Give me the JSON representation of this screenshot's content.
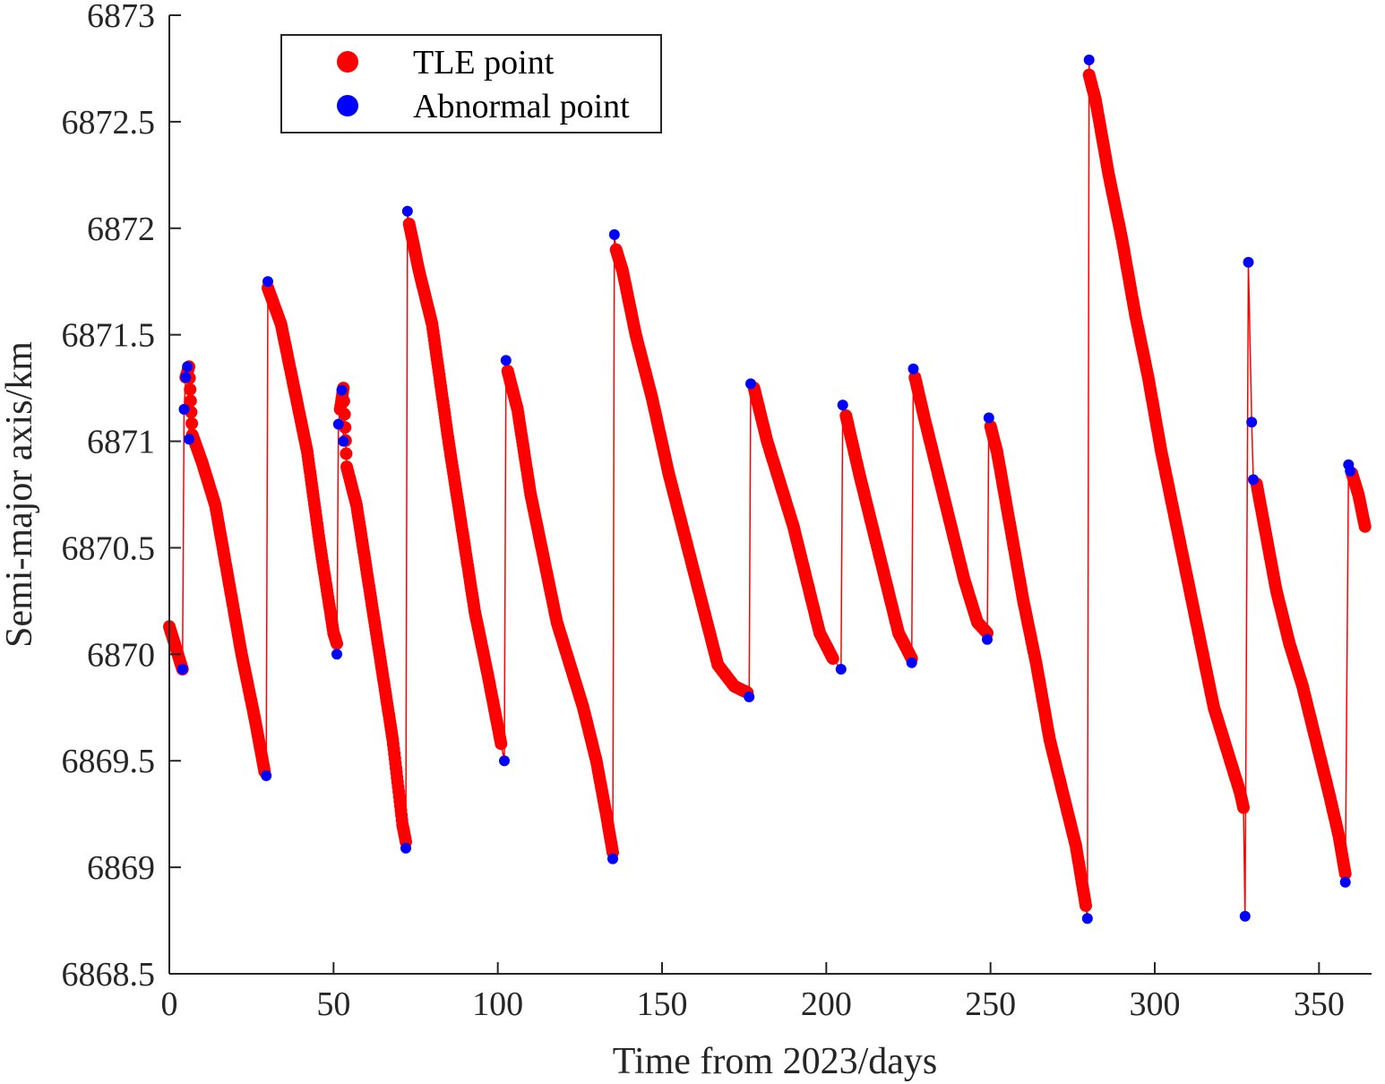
{
  "chart_data": {
    "type": "scatter",
    "title": "",
    "xlabel": "Time from 2023/days",
    "ylabel": "Semi-major axis/km",
    "xlim": [
      0,
      366
    ],
    "ylim": [
      6868.5,
      6873
    ],
    "xticks": [
      0,
      50,
      100,
      150,
      200,
      250,
      300,
      350
    ],
    "yticks": [
      6868.5,
      6869,
      6869.5,
      6870,
      6870.5,
      6871,
      6871.5,
      6872,
      6872.5,
      6873
    ],
    "xtick_labels": [
      "0",
      "50",
      "100",
      "150",
      "200",
      "250",
      "300",
      "350"
    ],
    "ytick_labels": [
      "6868.5",
      "6869",
      "6869.5",
      "6870",
      "6870.5",
      "6871",
      "6871.5",
      "6872",
      "6872.5",
      "6873"
    ],
    "grid": false,
    "legend_position": "top-left",
    "colors": {
      "tle": "#ff0000",
      "abnormal": "#0000ff",
      "line": "#ff0000",
      "axis": "#262626"
    },
    "series": [
      {
        "name": "TLE point",
        "color": "#ff0000",
        "segments": [
          [
            [
              0,
              6870.13
            ],
            [
              4,
              6869.93
            ]
          ],
          [
            [
              5,
              6871.3
            ],
            [
              6,
              6871.35
            ],
            [
              7,
              6871.03
            ],
            [
              10,
              6870.9
            ],
            [
              14,
              6870.7
            ],
            [
              18,
              6870.35
            ],
            [
              22,
              6870.0
            ],
            [
              26,
              6869.7
            ],
            [
              29,
              6869.45
            ]
          ],
          [
            [
              30,
              6871.72
            ],
            [
              34,
              6871.55
            ],
            [
              38,
              6871.25
            ],
            [
              42,
              6870.95
            ],
            [
              46,
              6870.5
            ],
            [
              50,
              6870.1
            ],
            [
              51,
              6870.05
            ]
          ],
          [
            [
              52,
              6871.15
            ],
            [
              53,
              6871.25
            ],
            [
              54,
              6870.88
            ],
            [
              57,
              6870.7
            ],
            [
              60,
              6870.4
            ],
            [
              64,
              6870.0
            ],
            [
              68,
              6869.6
            ],
            [
              71,
              6869.2
            ],
            [
              72,
              6869.12
            ]
          ],
          [
            [
              73,
              6872.02
            ],
            [
              74,
              6871.95
            ],
            [
              76,
              6871.8
            ],
            [
              80,
              6871.55
            ],
            [
              85,
              6871.0
            ],
            [
              89,
              6870.6
            ],
            [
              93,
              6870.2
            ],
            [
              97,
              6869.9
            ],
            [
              101,
              6869.58
            ]
          ],
          [
            [
              103,
              6871.33
            ],
            [
              106,
              6871.15
            ],
            [
              110,
              6870.75
            ],
            [
              114,
              6870.45
            ],
            [
              118,
              6870.15
            ],
            [
              122,
              6869.95
            ],
            [
              126,
              6869.75
            ],
            [
              130,
              6869.5
            ],
            [
              133,
              6869.25
            ],
            [
              135,
              6869.07
            ]
          ],
          [
            [
              136,
              6871.9
            ],
            [
              138,
              6871.8
            ],
            [
              142,
              6871.5
            ],
            [
              147,
              6871.2
            ],
            [
              152,
              6870.85
            ],
            [
              157,
              6870.55
            ],
            [
              162,
              6870.25
            ],
            [
              167,
              6869.95
            ],
            [
              172,
              6869.85
            ],
            [
              176,
              6869.82
            ]
          ],
          [
            [
              178,
              6871.25
            ],
            [
              182,
              6871.0
            ],
            [
              186,
              6870.8
            ],
            [
              190,
              6870.6
            ],
            [
              194,
              6870.35
            ],
            [
              198,
              6870.1
            ],
            [
              202,
              6869.98
            ]
          ],
          [
            [
              206,
              6871.12
            ],
            [
              210,
              6870.85
            ],
            [
              214,
              6870.6
            ],
            [
              218,
              6870.35
            ],
            [
              222,
              6870.1
            ],
            [
              226,
              6869.98
            ]
          ],
          [
            [
              227,
              6871.3
            ],
            [
              230,
              6871.1
            ],
            [
              234,
              6870.85
            ],
            [
              238,
              6870.6
            ],
            [
              242,
              6870.35
            ],
            [
              246,
              6870.15
            ],
            [
              249,
              6870.1
            ]
          ],
          [
            [
              250,
              6871.07
            ],
            [
              252,
              6870.95
            ],
            [
              256,
              6870.6
            ],
            [
              260,
              6870.25
            ],
            [
              264,
              6869.95
            ],
            [
              268,
              6869.6
            ],
            [
              272,
              6869.35
            ],
            [
              276,
              6869.1
            ],
            [
              279,
              6868.82
            ]
          ],
          [
            [
              280,
              6872.72
            ],
            [
              282,
              6872.6
            ],
            [
              286,
              6872.25
            ],
            [
              290,
              6871.95
            ],
            [
              294,
              6871.6
            ],
            [
              298,
              6871.3
            ],
            [
              302,
              6870.95
            ],
            [
              306,
              6870.65
            ],
            [
              310,
              6870.35
            ],
            [
              314,
              6870.05
            ],
            [
              318,
              6869.75
            ],
            [
              322,
              6869.55
            ],
            [
              326,
              6869.35
            ],
            [
              327,
              6869.28
            ]
          ],
          [
            [
              331,
              6870.8
            ],
            [
              334,
              6870.55
            ],
            [
              337,
              6870.3
            ],
            [
              341,
              6870.05
            ],
            [
              345,
              6869.85
            ],
            [
              349,
              6869.6
            ],
            [
              353,
              6869.35
            ],
            [
              356,
              6869.15
            ],
            [
              358,
              6868.97
            ]
          ],
          [
            [
              360,
              6870.85
            ],
            [
              362,
              6870.75
            ],
            [
              364,
              6870.6
            ]
          ]
        ]
      },
      {
        "name": "Abnormal point",
        "color": "#0000ff",
        "points": [
          [
            4,
            6869.93
          ],
          [
            4.5,
            6871.15
          ],
          [
            5,
            6871.3
          ],
          [
            5.5,
            6871.35
          ],
          [
            6,
            6871.01
          ],
          [
            29.5,
            6869.43
          ],
          [
            30,
            6871.75
          ],
          [
            51,
            6870.0
          ],
          [
            51.5,
            6871.08
          ],
          [
            52.5,
            6871.24
          ],
          [
            53,
            6871.0
          ],
          [
            72,
            6869.09
          ],
          [
            72.5,
            6872.08
          ],
          [
            102,
            6869.5
          ],
          [
            102.5,
            6871.38
          ],
          [
            135,
            6869.04
          ],
          [
            135.5,
            6871.97
          ],
          [
            176.5,
            6869.8
          ],
          [
            177,
            6871.27
          ],
          [
            204.5,
            6869.93
          ],
          [
            205,
            6871.17
          ],
          [
            226,
            6869.96
          ],
          [
            226.5,
            6871.34
          ],
          [
            249,
            6870.07
          ],
          [
            249.5,
            6871.11
          ],
          [
            279.5,
            6868.76
          ],
          [
            280,
            6872.79
          ],
          [
            327.5,
            6868.77
          ],
          [
            328.5,
            6871.84
          ],
          [
            329.5,
            6871.09
          ],
          [
            330,
            6870.82
          ],
          [
            358,
            6868.93
          ],
          [
            359,
            6870.89
          ],
          [
            359.5,
            6870.86
          ]
        ]
      }
    ]
  }
}
